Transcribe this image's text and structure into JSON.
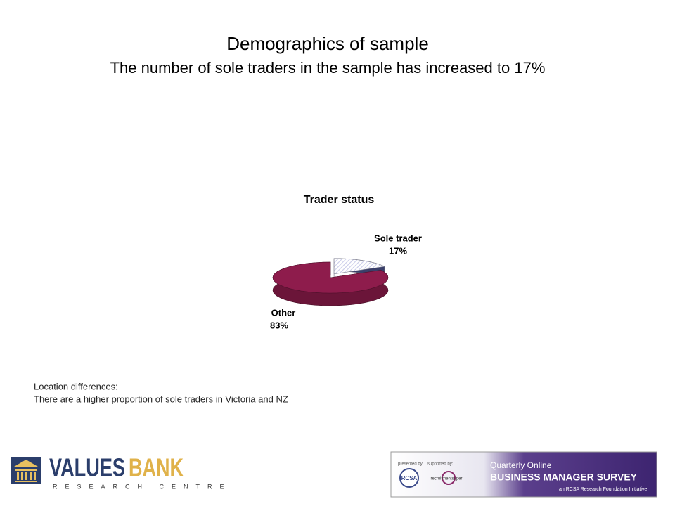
{
  "slide": {
    "title": "Demographics of sample",
    "subtitle": "The number of sole traders in the sample has increased to 17%",
    "notes": [
      "Location differences:",
      "There are a higher proportion of sole traders in Victoria and NZ"
    ]
  },
  "chart_data": {
    "type": "pie",
    "title": "Trader status",
    "categories": [
      "Sole trader",
      "Other"
    ],
    "values": [
      17,
      83
    ],
    "value_labels": [
      "17%",
      "83%"
    ],
    "colors": [
      "#c9cbe9",
      "#8e1c4c"
    ],
    "exploded": [
      true,
      false
    ]
  },
  "footer": {
    "logo_word1": "VALUES",
    "logo_word2": "BANK",
    "logo_sub": "RESEARCH CENTRE",
    "presented_by": "presented by:",
    "supported_by": "supported by:",
    "rcsa": "RCSA",
    "recruitment": "recruitmentsuper",
    "banner_line1": "Quarterly Online",
    "banner_line2": "BUSINESS MANAGER SURVEY",
    "banner_line3": "an RCSA Research Foundation Initiative"
  }
}
